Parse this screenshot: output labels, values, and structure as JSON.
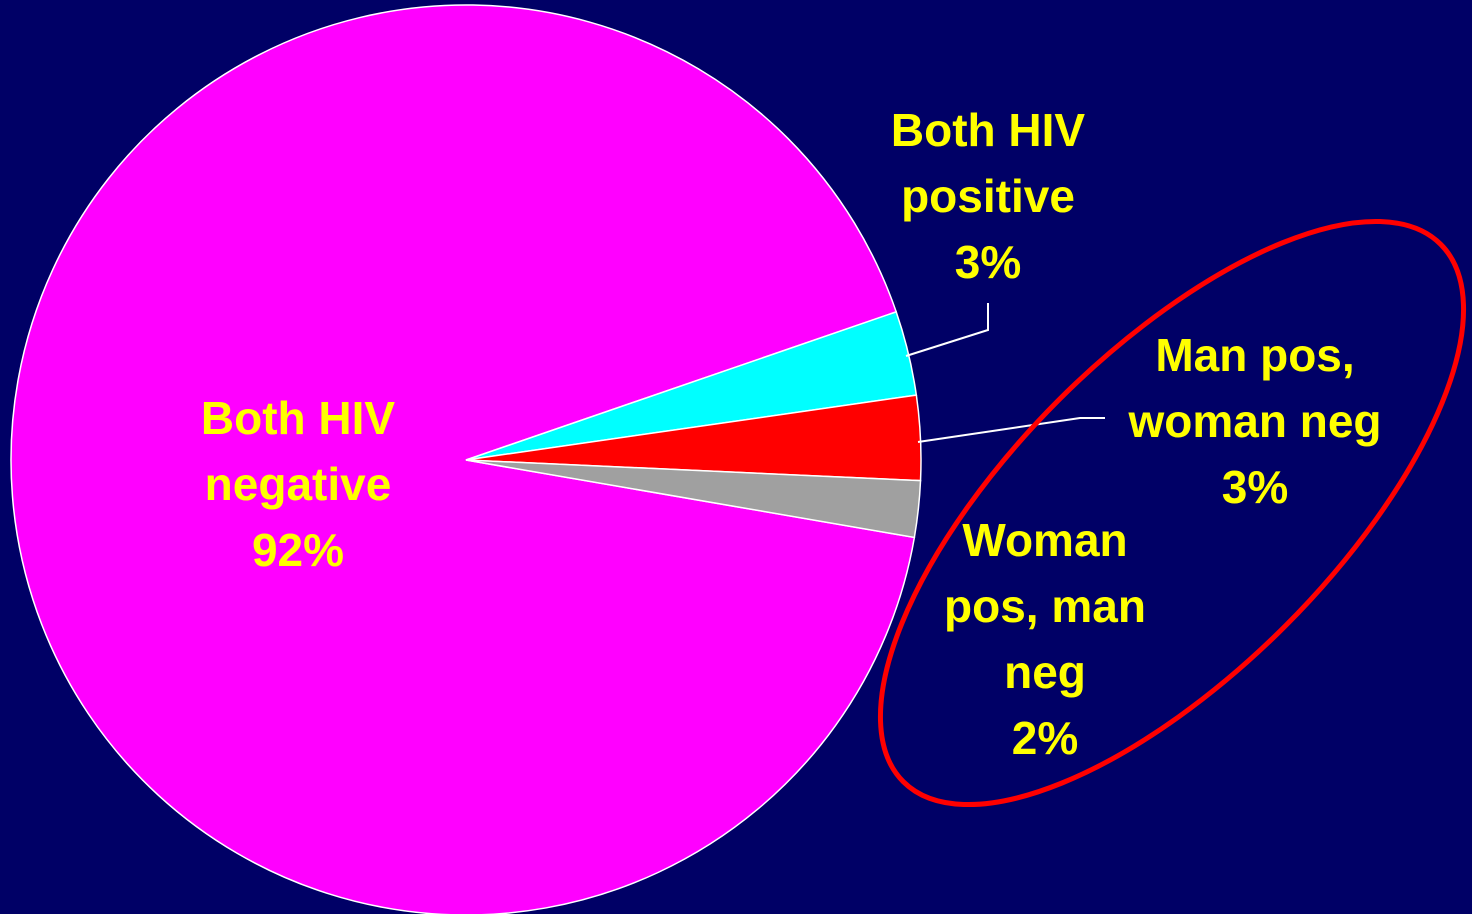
{
  "chart_data": {
    "type": "pie",
    "categories": [
      "Both HIV negative",
      "Both HIV positive",
      "Man pos, woman neg",
      "Woman pos, man neg"
    ],
    "values": [
      92,
      3,
      3,
      2
    ],
    "value_labels": [
      "92%",
      "3%",
      "3%",
      "2%"
    ],
    "colors": [
      "#ff00ff",
      "#00ffff",
      "#ff0000",
      "#a0a0a0"
    ]
  }
}
